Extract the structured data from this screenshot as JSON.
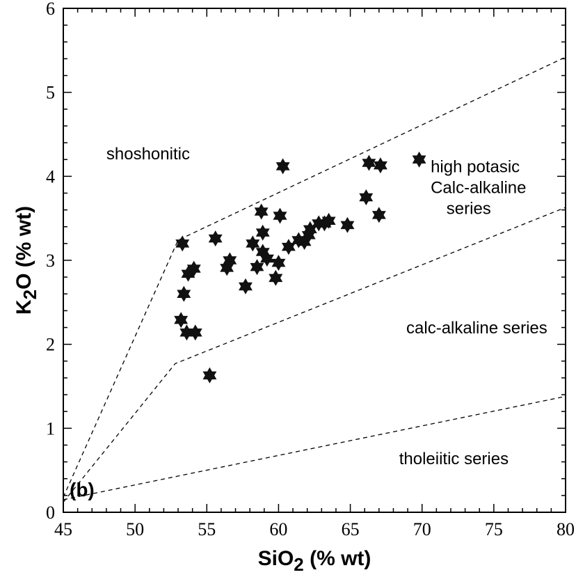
{
  "chart_data": {
    "type": "scatter",
    "panel_label": "(b)",
    "xlabel": {
      "main": "SiO",
      "sub": "2",
      "rest": " (% wt)"
    },
    "ylabel": {
      "main": "K",
      "sub": "2",
      "rest": "O (% wt)"
    },
    "xlim": [
      45,
      80
    ],
    "ylim": [
      0,
      6
    ],
    "x_ticks": [
      45,
      50,
      55,
      60,
      65,
      70,
      75,
      80
    ],
    "y_ticks": [
      0,
      1,
      2,
      3,
      4,
      5,
      6
    ],
    "grid": false,
    "marker": "six-pointed-star",
    "marker_color": "#111111",
    "series": [
      {
        "points": [
          [
            53.3,
            3.2
          ],
          [
            53.4,
            2.6
          ],
          [
            53.2,
            2.29
          ],
          [
            53.6,
            2.14
          ],
          [
            54.2,
            2.14
          ],
          [
            53.7,
            2.84
          ],
          [
            54.1,
            2.9
          ],
          [
            55.2,
            1.63
          ],
          [
            55.6,
            3.26
          ],
          [
            56.6,
            3.0
          ],
          [
            56.4,
            2.91
          ],
          [
            57.7,
            2.69
          ],
          [
            58.2,
            3.2
          ],
          [
            58.5,
            2.92
          ],
          [
            58.8,
            3.58
          ],
          [
            58.9,
            3.33
          ],
          [
            58.9,
            3.1
          ],
          [
            59.2,
            3.02
          ],
          [
            59.8,
            2.79
          ],
          [
            60.0,
            2.97
          ],
          [
            60.1,
            3.53
          ],
          [
            60.3,
            4.12
          ],
          [
            60.7,
            3.16
          ],
          [
            61.4,
            3.24
          ],
          [
            61.8,
            3.22
          ],
          [
            62.1,
            3.3
          ],
          [
            62.2,
            3.37
          ],
          [
            62.8,
            3.44
          ],
          [
            63.2,
            3.44
          ],
          [
            63.5,
            3.47
          ],
          [
            64.8,
            3.42
          ],
          [
            66.1,
            3.75
          ],
          [
            66.3,
            4.16
          ],
          [
            67.0,
            3.54
          ],
          [
            67.1,
            4.13
          ],
          [
            69.8,
            4.2
          ]
        ]
      }
    ],
    "boundaries": [
      {
        "points": [
          [
            45,
            0.18
          ],
          [
            53,
            3.24
          ],
          [
            80,
            5.42
          ]
        ]
      },
      {
        "points": [
          [
            45,
            0.12
          ],
          [
            52.8,
            1.77
          ],
          [
            80,
            3.63
          ]
        ]
      },
      {
        "points": [
          [
            45,
            0.15
          ],
          [
            80,
            1.38
          ]
        ]
      }
    ],
    "regions": [
      {
        "label": "shoshonitic",
        "at": [
          48,
          4.2
        ]
      },
      {
        "label": "high potasic",
        "at": [
          70.6,
          4.05
        ]
      },
      {
        "label": "Calc-alkaline",
        "at": [
          70.6,
          3.8
        ]
      },
      {
        "label": "series",
        "at": [
          71.7,
          3.55
        ]
      },
      {
        "label": "calc-alkaline series",
        "at": [
          68.9,
          2.13
        ]
      },
      {
        "label": "tholeiitic series",
        "at": [
          68.4,
          0.57
        ]
      }
    ]
  }
}
